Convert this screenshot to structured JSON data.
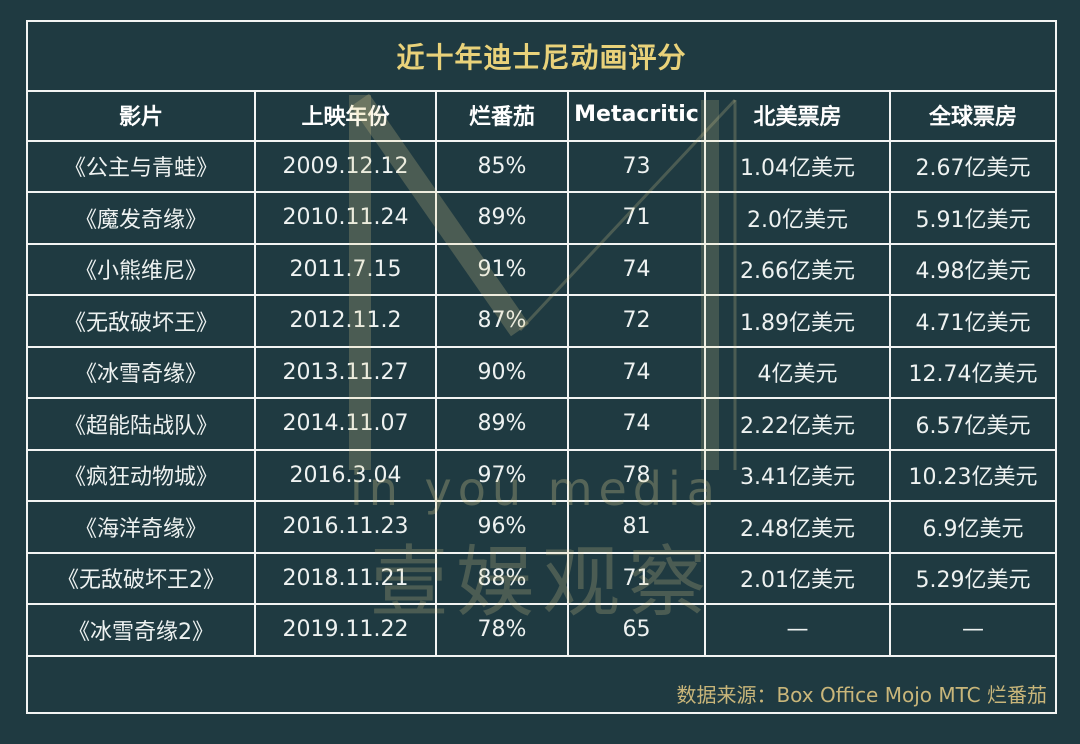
{
  "title": "近十年迪士尼动画评分",
  "columns": [
    "影片",
    "上映年份",
    "烂番茄",
    "Metacritic",
    "北美票房",
    "全球票房"
  ],
  "rows": [
    [
      "《公主与青蛙》",
      "2009.12.12",
      "85%",
      "73",
      "1.04亿美元",
      "2.67亿美元"
    ],
    [
      "《魔发奇缘》",
      "2010.11.24",
      "89%",
      "71",
      "2.0亿美元",
      "5.91亿美元"
    ],
    [
      "《小熊维尼》",
      "2011.7.15",
      "91%",
      "74",
      "2.66亿美元",
      "4.98亿美元"
    ],
    [
      "《无敌破坏王》",
      "2012.11.2",
      "87%",
      "72",
      "1.89亿美元",
      "4.71亿美元"
    ],
    [
      "《冰雪奇缘》",
      "2013.11.27",
      "90%",
      "74",
      "4亿美元",
      "12.74亿美元"
    ],
    [
      "《超能陆战队》",
      "2014.11.07",
      "89%",
      "74",
      "2.22亿美元",
      "6.57亿美元"
    ],
    [
      "《疯狂动物城》",
      "2016.3.04",
      "97%",
      "78",
      "3.41亿美元",
      "10.23亿美元"
    ],
    [
      "《海洋奇缘》",
      "2016.11.23",
      "96%",
      "81",
      "2.48亿美元",
      "6.9亿美元"
    ],
    [
      "《无敌破坏王2》",
      "2018.11.21",
      "88%",
      "71",
      "2.01亿美元",
      "5.29亿美元"
    ],
    [
      "《冰雪奇缘2》",
      "2019.11.22",
      "78%",
      "65",
      "—",
      "—"
    ]
  ],
  "footer": "数据来源：Box Office Mojo MTC 烂番茄",
  "watermark": {
    "latin": "in you media",
    "cn": "壹娱观察"
  },
  "colors": {
    "background": "#1f3a41",
    "title": "#e9d27a",
    "grid": "#f2f4f3",
    "footer": "#c9b67a"
  }
}
